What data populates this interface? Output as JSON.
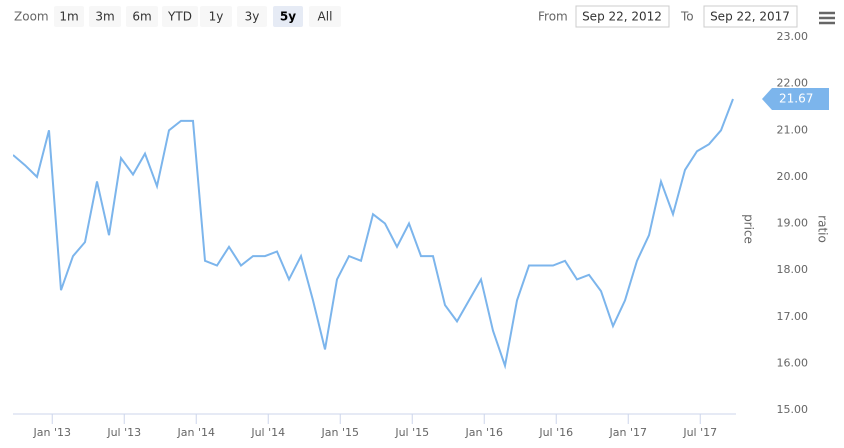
{
  "chart_data": {
    "type": "line",
    "range_selector": {
      "label": "Zoom",
      "buttons": [
        "1m",
        "3m",
        "6m",
        "YTD",
        "1y",
        "3y",
        "5y",
        "All"
      ],
      "selected_index": 6
    },
    "date_inputs": {
      "from_label": "From",
      "from": "Sep 22, 2012",
      "to_label": "To",
      "to": "Sep 22, 2017"
    },
    "y_axis_title": "price",
    "y2_axis_title": "ratio",
    "x": [
      "2012-09",
      "2012-10",
      "2012-11",
      "2012-12",
      "2013-01",
      "2013-02",
      "2013-03",
      "2013-04",
      "2013-05",
      "2013-06",
      "2013-07",
      "2013-08",
      "2013-09",
      "2013-10",
      "2013-11",
      "2013-12",
      "2014-01",
      "2014-02",
      "2014-03",
      "2014-04",
      "2014-05",
      "2014-06",
      "2014-07",
      "2014-08",
      "2014-09",
      "2014-10",
      "2014-11",
      "2014-12",
      "2015-01",
      "2015-02",
      "2015-03",
      "2015-04",
      "2015-05",
      "2015-06",
      "2015-07",
      "2015-08",
      "2015-09",
      "2015-10",
      "2015-11",
      "2015-12",
      "2016-01",
      "2016-02",
      "2016-03",
      "2016-04",
      "2016-05",
      "2016-06",
      "2016-07",
      "2016-08",
      "2016-09",
      "2016-10",
      "2016-11",
      "2016-12",
      "2017-01",
      "2017-02",
      "2017-03",
      "2017-04",
      "2017-05",
      "2017-06",
      "2017-07",
      "2017-08",
      "2017-09"
    ],
    "series": [
      {
        "name": "price",
        "color": "#7cb5ec",
        "values": [
          20.47,
          20.25,
          20.0,
          21.0,
          17.57,
          18.3,
          18.6,
          19.9,
          18.75,
          20.4,
          20.05,
          20.5,
          19.8,
          21.0,
          21.2,
          21.2,
          18.2,
          18.1,
          18.5,
          18.1,
          18.3,
          18.3,
          18.4,
          17.8,
          18.3,
          17.35,
          16.3,
          17.8,
          18.3,
          18.2,
          19.2,
          19.0,
          18.5,
          19.0,
          18.3,
          18.3,
          17.25,
          16.9,
          17.35,
          17.8,
          16.7,
          15.95,
          17.35,
          18.1,
          18.1,
          18.1,
          18.2,
          17.8,
          17.9,
          17.55,
          16.8,
          17.35,
          18.2,
          18.75,
          19.9,
          19.2,
          20.15,
          20.55,
          20.7,
          21.0,
          21.67
        ]
      }
    ],
    "xlim": [
      "2012-09",
      "2017-09"
    ],
    "xticks": [
      {
        "value": "2013-01",
        "label": "Jan '13"
      },
      {
        "value": "2013-07",
        "label": "Jul '13"
      },
      {
        "value": "2014-01",
        "label": "Jan '14"
      },
      {
        "value": "2014-07",
        "label": "Jul '14"
      },
      {
        "value": "2015-01",
        "label": "Jan '15"
      },
      {
        "value": "2015-07",
        "label": "Jul '15"
      },
      {
        "value": "2016-01",
        "label": "Jan '16"
      },
      {
        "value": "2016-07",
        "label": "Jul '16"
      },
      {
        "value": "2017-01",
        "label": "Jan '17"
      },
      {
        "value": "2017-07",
        "label": "Jul '17"
      }
    ],
    "ylim": [
      15,
      23
    ],
    "yticks": [
      {
        "value": 15,
        "label": "15.00"
      },
      {
        "value": 16,
        "label": "16.00"
      },
      {
        "value": 17,
        "label": "17.00"
      },
      {
        "value": 18,
        "label": "18.00"
      },
      {
        "value": 19,
        "label": "19.00"
      },
      {
        "value": 20,
        "label": "20.00"
      },
      {
        "value": 21,
        "label": "21.00"
      },
      {
        "value": 22,
        "label": "22.00"
      },
      {
        "value": 23,
        "label": "23.00"
      }
    ],
    "grid": false
  }
}
